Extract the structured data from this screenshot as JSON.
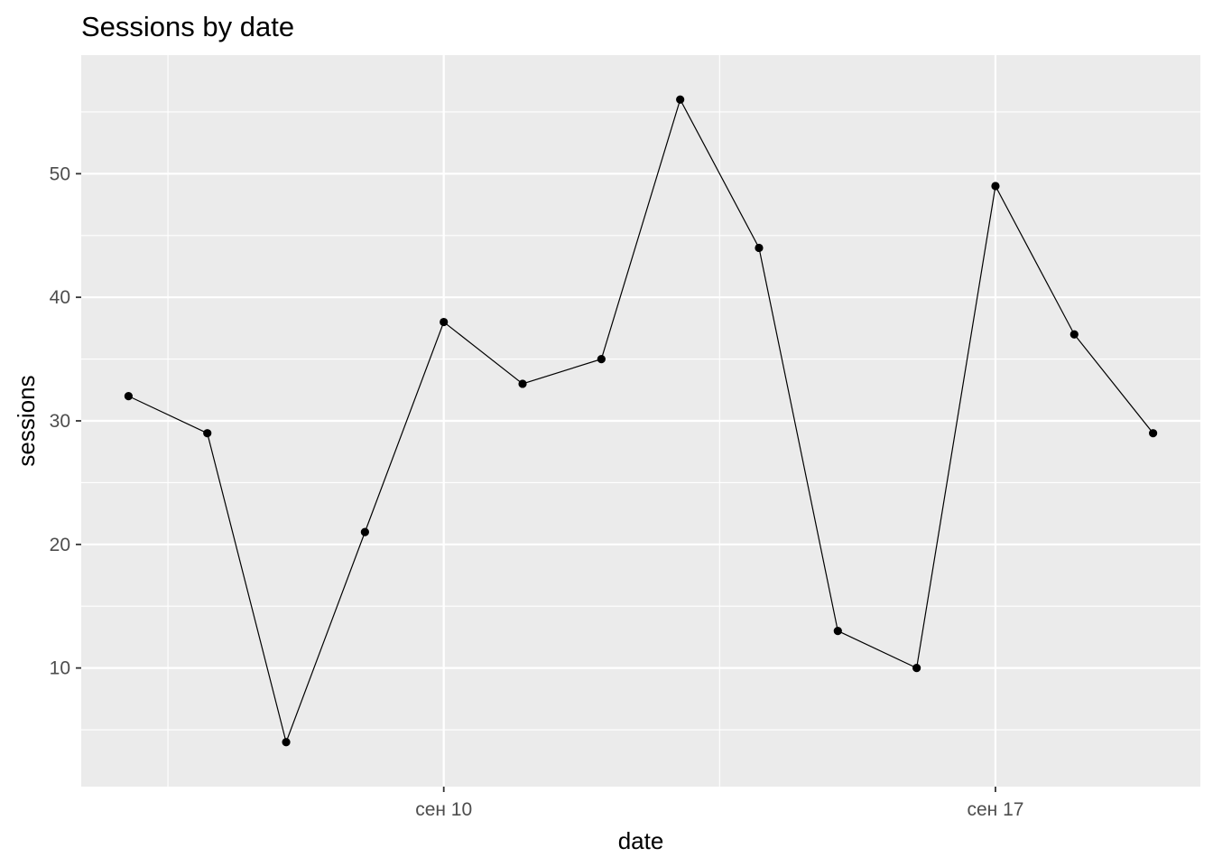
{
  "chart_data": {
    "type": "line",
    "title": "Sessions by date",
    "xlabel": "date",
    "ylabel": "sessions",
    "x": [
      "Sep 6",
      "Sep 7",
      "Sep 8",
      "Sep 9",
      "Sep 10",
      "Sep 11",
      "Sep 12",
      "Sep 13",
      "Sep 14",
      "Sep 15",
      "Sep 16",
      "Sep 17",
      "Sep 18",
      "Sep 19"
    ],
    "series": [
      {
        "values": [
          32,
          29,
          4,
          21,
          38,
          33,
          35,
          56,
          44,
          13,
          10,
          49,
          37,
          29
        ]
      }
    ],
    "x_ticks": [
      "сен 10",
      "сен 17"
    ],
    "y_ticks": [
      "10",
      "20",
      "30",
      "40",
      "50"
    ],
    "ylim": [
      0.4,
      59.6
    ],
    "grid": true,
    "markers": true,
    "colors": {
      "panel_background": "#ebebeb",
      "grid": "#ffffff",
      "line": "#000000"
    }
  }
}
